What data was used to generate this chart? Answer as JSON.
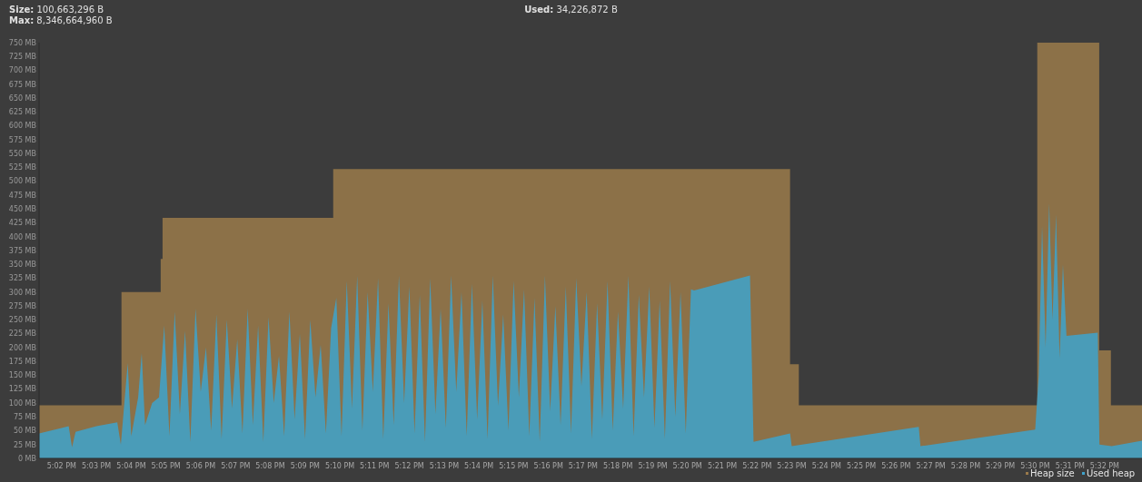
{
  "chart_data": {
    "type": "area",
    "annotations": [
      "Size: 100,663,296 B",
      "Max: 8,346,664,960 B",
      "Used: 34,226,872 B"
    ],
    "xlim": [
      17.0225,
      17.5512
    ],
    "ylim": [
      0,
      750
    ],
    "xticks": [
      {
        "value": 17.0333,
        "label": "5:02 PM"
      },
      {
        "value": 17.05,
        "label": "5:03 PM"
      },
      {
        "value": 17.0667,
        "label": "5:04 PM"
      },
      {
        "value": 17.0833,
        "label": "5:05 PM"
      },
      {
        "value": 17.1,
        "label": "5:06 PM"
      },
      {
        "value": 17.1167,
        "label": "5:07 PM"
      },
      {
        "value": 17.1333,
        "label": "5:08 PM"
      },
      {
        "value": 17.15,
        "label": "5:09 PM"
      },
      {
        "value": 17.1667,
        "label": "5:10 PM"
      },
      {
        "value": 17.1833,
        "label": "5:11 PM"
      },
      {
        "value": 17.2,
        "label": "5:12 PM"
      },
      {
        "value": 17.2167,
        "label": "5:13 PM"
      },
      {
        "value": 17.2333,
        "label": "5:14 PM"
      },
      {
        "value": 17.25,
        "label": "5:15 PM"
      },
      {
        "value": 17.2667,
        "label": "5:16 PM"
      },
      {
        "value": 17.2833,
        "label": "5:17 PM"
      },
      {
        "value": 17.3,
        "label": "5:18 PM"
      },
      {
        "value": 17.3167,
        "label": "5:19 PM"
      },
      {
        "value": 17.3333,
        "label": "5:20 PM"
      },
      {
        "value": 17.35,
        "label": "5:21 PM"
      },
      {
        "value": 17.3667,
        "label": "5:22 PM"
      },
      {
        "value": 17.3833,
        "label": "5:23 PM"
      },
      {
        "value": 17.4,
        "label": "5:24 PM"
      },
      {
        "value": 17.4167,
        "label": "5:25 PM"
      },
      {
        "value": 17.4333,
        "label": "5:26 PM"
      },
      {
        "value": 17.45,
        "label": "5:27 PM"
      },
      {
        "value": 17.4667,
        "label": "5:28 PM"
      },
      {
        "value": 17.4833,
        "label": "5:29 PM"
      },
      {
        "value": 17.5,
        "label": "5:30 PM"
      },
      {
        "value": 17.5167,
        "label": "5:31 PM"
      },
      {
        "value": 17.5333,
        "label": "5:32 PM"
      }
    ],
    "yticks": [
      {
        "value": 0,
        "label": "0 MB"
      },
      {
        "value": 25,
        "label": "25 MB"
      },
      {
        "value": 50,
        "label": "50 MB"
      },
      {
        "value": 75,
        "label": "75 MB"
      },
      {
        "value": 100,
        "label": "100 MB"
      },
      {
        "value": 125,
        "label": "125 MB"
      },
      {
        "value": 150,
        "label": "150 MB"
      },
      {
        "value": 175,
        "label": "175 MB"
      },
      {
        "value": 200,
        "label": "200 MB"
      },
      {
        "value": 225,
        "label": "225 MB"
      },
      {
        "value": 250,
        "label": "250 MB"
      },
      {
        "value": 275,
        "label": "275 MB"
      },
      {
        "value": 300,
        "label": "300 MB"
      },
      {
        "value": 325,
        "label": "325 MB"
      },
      {
        "value": 350,
        "label": "350 MB"
      },
      {
        "value": 375,
        "label": "375 MB"
      },
      {
        "value": 400,
        "label": "400 MB"
      },
      {
        "value": 425,
        "label": "425 MB"
      },
      {
        "value": 450,
        "label": "450 MB"
      },
      {
        "value": 475,
        "label": "475 MB"
      },
      {
        "value": 500,
        "label": "500 MB"
      },
      {
        "value": 525,
        "label": "525 MB"
      },
      {
        "value": 550,
        "label": "550 MB"
      },
      {
        "value": 575,
        "label": "575 MB"
      },
      {
        "value": 600,
        "label": "600 MB"
      },
      {
        "value": 625,
        "label": "625 MB"
      },
      {
        "value": 650,
        "label": "650 MB"
      },
      {
        "value": 675,
        "label": "675 MB"
      },
      {
        "value": 700,
        "label": "700 MB"
      },
      {
        "value": 725,
        "label": "725 MB"
      },
      {
        "value": 750,
        "label": "750 MB"
      }
    ],
    "legend": "bottom right",
    "series": [
      {
        "name": "Heap size",
        "color": "#9a7a4a",
        "x": [
          17.0225,
          17.062,
          17.062,
          17.0808,
          17.0808,
          17.0817,
          17.0817,
          17.1635,
          17.1635,
          17.3825,
          17.3825,
          17.3867,
          17.3867,
          17.501,
          17.501,
          17.5307,
          17.5307,
          17.5363,
          17.5363,
          17.5512
        ],
        "values": [
          96,
          96,
          300,
          300,
          360,
          360,
          434,
          434,
          522,
          522,
          170,
          170,
          96,
          96,
          750,
          750,
          195,
          195,
          96,
          96
        ]
      },
      {
        "name": "Used heap",
        "color": "#3ea3cc",
        "x": [
          17.0225,
          17.0333,
          17.0367,
          17.0383,
          17.04,
          17.05,
          17.06,
          17.0617,
          17.065,
          17.0667,
          17.07,
          17.0717,
          17.0733,
          17.0767,
          17.08,
          17.0825,
          17.085,
          17.0875,
          17.09,
          17.0925,
          17.095,
          17.0975,
          17.1,
          17.1025,
          17.105,
          17.1075,
          17.11,
          17.1125,
          17.115,
          17.1175,
          17.12,
          17.1225,
          17.125,
          17.1275,
          17.13,
          17.1325,
          17.135,
          17.1375,
          17.14,
          17.1425,
          17.145,
          17.1475,
          17.15,
          17.1525,
          17.155,
          17.1575,
          17.16,
          17.1625,
          17.165,
          17.1675,
          17.17,
          17.1725,
          17.175,
          17.1775,
          17.18,
          17.1825,
          17.185,
          17.1875,
          17.19,
          17.1925,
          17.195,
          17.1975,
          17.2,
          17.2025,
          17.205,
          17.2075,
          17.21,
          17.2125,
          17.215,
          17.2175,
          17.22,
          17.2225,
          17.225,
          17.2275,
          17.23,
          17.2325,
          17.235,
          17.2375,
          17.24,
          17.2425,
          17.245,
          17.2475,
          17.25,
          17.2525,
          17.255,
          17.2575,
          17.26,
          17.2625,
          17.265,
          17.2675,
          17.27,
          17.2725,
          17.275,
          17.2775,
          17.28,
          17.2825,
          17.285,
          17.2875,
          17.29,
          17.2925,
          17.295,
          17.2975,
          17.3,
          17.3025,
          17.305,
          17.3075,
          17.31,
          17.3125,
          17.315,
          17.3175,
          17.32,
          17.3225,
          17.325,
          17.3275,
          17.33,
          17.3325,
          17.335,
          17.3365,
          17.3633,
          17.365,
          17.3825,
          17.3833,
          17.4442,
          17.445,
          17.5,
          17.5017,
          17.5033,
          17.505,
          17.5067,
          17.5083,
          17.51,
          17.5117,
          17.5133,
          17.515,
          17.53,
          17.5308,
          17.5367,
          17.5512
        ],
        "values": [
          45,
          55,
          58,
          20,
          48,
          58,
          65,
          25,
          172,
          40,
          110,
          190,
          60,
          100,
          110,
          240,
          40,
          265,
          80,
          230,
          30,
          270,
          120,
          200,
          50,
          260,
          35,
          250,
          90,
          215,
          45,
          270,
          60,
          240,
          30,
          255,
          100,
          185,
          40,
          265,
          70,
          225,
          35,
          250,
          110,
          205,
          45,
          235,
          290,
          40,
          320,
          90,
          330,
          50,
          300,
          120,
          325,
          35,
          280,
          60,
          330,
          100,
          310,
          45,
          295,
          30,
          325,
          80,
          270,
          55,
          330,
          120,
          300,
          40,
          315,
          70,
          285,
          35,
          330,
          95,
          260,
          50,
          320,
          110,
          305,
          40,
          290,
          30,
          330,
          85,
          275,
          60,
          310,
          45,
          325,
          130,
          300,
          35,
          280,
          70,
          320,
          50,
          265,
          90,
          330,
          40,
          295,
          110,
          310,
          55,
          285,
          35,
          320,
          75,
          300,
          45,
          305,
          303,
          330,
          30,
          45,
          22,
          57,
          22,
          52,
          150,
          420,
          200,
          460,
          250,
          440,
          180,
          350,
          221,
          227,
          25,
          22,
          32
        ]
      }
    ]
  }
}
